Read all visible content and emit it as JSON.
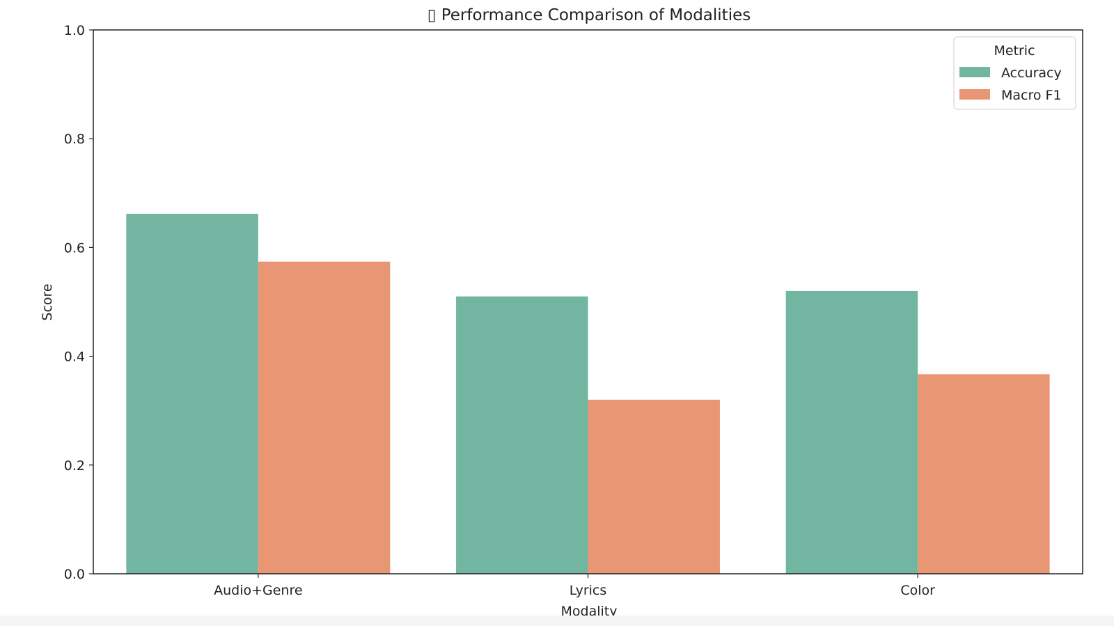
{
  "chart_data": {
    "type": "bar",
    "title": "▯ Performance Comparison of Modalities",
    "xlabel": "Modality",
    "ylabel": "Score",
    "categories": [
      "Audio+Genre",
      "Lyrics",
      "Color"
    ],
    "series": [
      {
        "name": "Accuracy",
        "values": [
          0.662,
          0.51,
          0.52
        ],
        "color": "#72b6a1"
      },
      {
        "name": "Macro F1",
        "values": [
          0.574,
          0.32,
          0.367
        ],
        "color": "#e99675"
      }
    ],
    "ylim": [
      0.0,
      1.0
    ],
    "yticks": [
      "0.0",
      "0.2",
      "0.4",
      "0.6",
      "0.8",
      "1.0"
    ],
    "legend": {
      "title": "Metric",
      "placement": "top-right"
    },
    "grid": false
  }
}
